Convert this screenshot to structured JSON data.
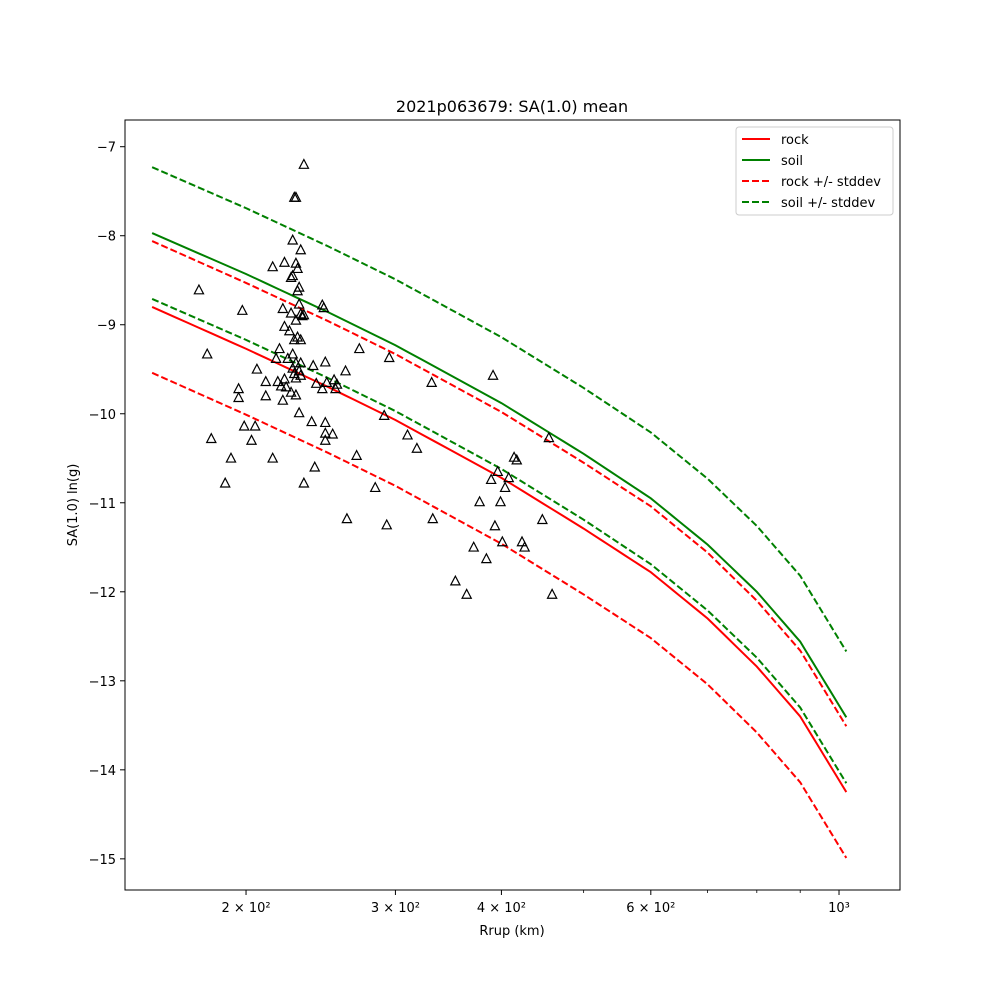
{
  "chart_data": {
    "type": "scatter",
    "title": "2021p063679: SA(1.0) mean",
    "xlabel": "Rrup (km)",
    "ylabel": "SA(1.0) ln(g)",
    "x_scale": "log",
    "xlim": [
      144,
      1180
    ],
    "ylim": [
      -15.35,
      -6.7
    ],
    "grid": false,
    "legend_position": "top-right",
    "x_ticks": [
      {
        "value": 200,
        "label": "2 × 10²"
      },
      {
        "value": 300,
        "label": "3 × 10²"
      },
      {
        "value": 400,
        "label": "4 × 10²"
      },
      {
        "value": 600,
        "label": "6 × 10²"
      },
      {
        "value": 1000,
        "label": "10³"
      }
    ],
    "x_minor_ticks": [
      500,
      700,
      800,
      900
    ],
    "y_ticks": [
      -7,
      -8,
      -9,
      -10,
      -11,
      -12,
      -13,
      -14,
      -15
    ],
    "y_tick_labels": [
      "−7",
      "−8",
      "−9",
      "−10",
      "−11",
      "−12",
      "−13",
      "−14",
      "−15"
    ],
    "colors": {
      "rock": "#ff0000",
      "soil": "#008000",
      "points": "#000000"
    },
    "series": [
      {
        "name": "rock",
        "style": "solid",
        "color": "#ff0000",
        "x": [
          155,
          200,
          250,
          300,
          400,
          500,
          600,
          700,
          800,
          900,
          1020
        ],
        "y": [
          -8.8,
          -9.27,
          -9.7,
          -10.07,
          -10.72,
          -11.29,
          -11.78,
          -12.3,
          -12.84,
          -13.4,
          -14.25
        ]
      },
      {
        "name": "soil",
        "style": "solid",
        "color": "#008000",
        "x": [
          155,
          200,
          250,
          300,
          400,
          500,
          600,
          700,
          800,
          900,
          1020
        ],
        "y": [
          -7.97,
          -8.43,
          -8.86,
          -9.23,
          -9.88,
          -10.45,
          -10.95,
          -11.47,
          -12.0,
          -12.56,
          -13.41
        ]
      },
      {
        "name": "rock +/- stddev",
        "style": "dashed",
        "color": "#ff0000",
        "x": [
          155,
          200,
          250,
          300,
          400,
          500,
          600,
          700,
          800,
          900,
          1020
        ],
        "y": [
          -8.06,
          -8.53,
          -8.96,
          -9.33,
          -9.98,
          -10.55,
          -11.04,
          -11.56,
          -12.1,
          -12.66,
          -13.51
        ]
      },
      {
        "name": "",
        "style": "dashed",
        "color": "#ff0000",
        "x": [
          155,
          200,
          250,
          300,
          400,
          500,
          600,
          700,
          800,
          900,
          1020
        ],
        "y": [
          -9.54,
          -10.01,
          -10.44,
          -10.81,
          -11.46,
          -12.03,
          -12.52,
          -13.04,
          -13.58,
          -14.14,
          -14.99
        ]
      },
      {
        "name": "soil +/- stddev",
        "style": "dashed",
        "color": "#008000",
        "x": [
          155,
          200,
          250,
          300,
          400,
          500,
          600,
          700,
          800,
          900,
          1020
        ],
        "y": [
          -7.23,
          -7.69,
          -8.12,
          -8.49,
          -9.14,
          -9.71,
          -10.21,
          -10.73,
          -11.26,
          -11.82,
          -12.67
        ]
      },
      {
        "name": "",
        "style": "dashed",
        "color": "#008000",
        "x": [
          155,
          200,
          250,
          300,
          400,
          500,
          600,
          700,
          800,
          900,
          1020
        ],
        "y": [
          -8.71,
          -9.17,
          -9.6,
          -9.97,
          -10.62,
          -11.19,
          -11.69,
          -12.21,
          -12.74,
          -13.3,
          -14.15
        ]
      }
    ],
    "observations": {
      "marker": "triangle-open",
      "points": [
        [
          176,
          -8.61
        ],
        [
          180,
          -9.33
        ],
        [
          182,
          -10.28
        ],
        [
          189,
          -10.78
        ],
        [
          192,
          -10.5
        ],
        [
          196,
          -9.72
        ],
        [
          196,
          -9.82
        ],
        [
          198,
          -8.84
        ],
        [
          199,
          -10.14
        ],
        [
          203,
          -10.3
        ],
        [
          205,
          -10.14
        ],
        [
          206,
          -9.5
        ],
        [
          211,
          -9.64
        ],
        [
          211,
          -9.8
        ],
        [
          215,
          -8.35
        ],
        [
          215,
          -10.5
        ],
        [
          217,
          -9.38
        ],
        [
          218,
          -9.64
        ],
        [
          219,
          -9.27
        ],
        [
          220,
          -9.69
        ],
        [
          221,
          -8.82
        ],
        [
          221,
          -9.85
        ],
        [
          222,
          -8.3
        ],
        [
          222,
          -9.61
        ],
        [
          222,
          -9.02
        ],
        [
          223,
          -9.7
        ],
        [
          224,
          -9.38
        ],
        [
          225,
          -9.07
        ],
        [
          226,
          -8.47
        ],
        [
          226,
          -9.76
        ],
        [
          226,
          -8.87
        ],
        [
          227,
          -9.33
        ],
        [
          227,
          -8.05
        ],
        [
          227,
          -8.45
        ],
        [
          227,
          -9.49
        ],
        [
          228,
          -7.57
        ],
        [
          228,
          -9.17
        ],
        [
          228,
          -9.55
        ],
        [
          229,
          -8.31
        ],
        [
          229,
          -7.57
        ],
        [
          229,
          -9.43
        ],
        [
          229,
          -9.6
        ],
        [
          229,
          -9.79
        ],
        [
          229,
          -8.95
        ],
        [
          230,
          -8.37
        ],
        [
          230,
          -9.14
        ],
        [
          230,
          -8.62
        ],
        [
          231,
          -8.58
        ],
        [
          231,
          -8.77
        ],
        [
          231,
          -9.52
        ],
        [
          231,
          -9.99
        ],
        [
          232,
          -8.16
        ],
        [
          232,
          -8.88
        ],
        [
          232,
          -9.17
        ],
        [
          232,
          -9.43
        ],
        [
          232,
          -9.57
        ],
        [
          233,
          -8.9
        ],
        [
          234,
          -7.2
        ],
        [
          234,
          -8.89
        ],
        [
          234,
          -10.78
        ],
        [
          239,
          -10.09
        ],
        [
          240,
          -9.46
        ],
        [
          241,
          -10.6
        ],
        [
          242,
          -9.66
        ],
        [
          246,
          -9.72
        ],
        [
          246,
          -8.78
        ],
        [
          247,
          -8.81
        ],
        [
          248,
          -9.42
        ],
        [
          248,
          -10.1
        ],
        [
          249,
          -9.65
        ],
        [
          248,
          -10.22
        ],
        [
          248,
          -10.3
        ],
        [
          253,
          -10.23
        ],
        [
          254,
          -9.62
        ],
        [
          255,
          -9.72
        ],
        [
          256,
          -9.67
        ],
        [
          262,
          -9.52
        ],
        [
          263,
          -11.18
        ],
        [
          270,
          -10.47
        ],
        [
          272,
          -9.27
        ],
        [
          284,
          -10.83
        ],
        [
          291,
          -10.02
        ],
        [
          293,
          -11.25
        ],
        [
          295,
          -9.37
        ],
        [
          310,
          -10.24
        ],
        [
          318,
          -10.39
        ],
        [
          331,
          -9.65
        ],
        [
          332,
          -11.18
        ],
        [
          353,
          -11.88
        ],
        [
          364,
          -12.03
        ],
        [
          371,
          -11.5
        ],
        [
          377,
          -10.99
        ],
        [
          384,
          -11.63
        ],
        [
          389,
          -10.74
        ],
        [
          391,
          -9.57
        ],
        [
          393,
          -11.26
        ],
        [
          396,
          -10.65
        ],
        [
          399,
          -10.99
        ],
        [
          401,
          -11.44
        ],
        [
          404,
          -10.83
        ],
        [
          408,
          -10.72
        ],
        [
          414,
          -10.49
        ],
        [
          417,
          -10.52
        ],
        [
          423,
          -11.44
        ],
        [
          426,
          -11.5
        ],
        [
          447,
          -11.19
        ],
        [
          455,
          -10.27
        ],
        [
          459,
          -12.03
        ]
      ]
    }
  }
}
